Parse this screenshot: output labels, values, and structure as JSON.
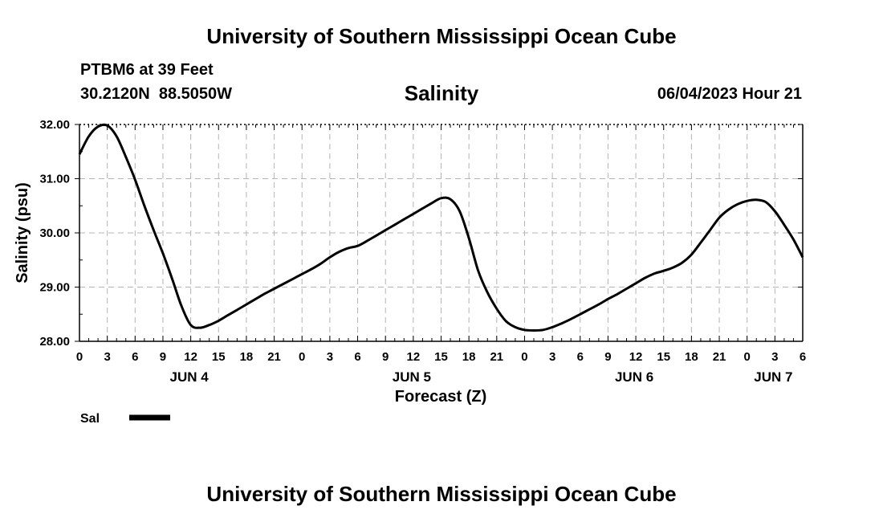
{
  "header": {
    "title": "University of Southern Mississippi Ocean Cube",
    "station": "PTBM6 at 39 Feet",
    "coords": "30.2120N  88.5050W",
    "timestamp": "06/04/2023 Hour 21"
  },
  "footer": {
    "title": "University of Southern Mississippi Ocean Cube"
  },
  "chart_data": {
    "type": "line",
    "title": "Salinity",
    "xlabel": "Forecast (Z)",
    "ylabel": "Salinity (psu)",
    "xlim": [
      0,
      78
    ],
    "ylim": [
      28.0,
      32.0
    ],
    "grid": true,
    "x_ticks": [
      0,
      3,
      6,
      9,
      12,
      15,
      18,
      21,
      24,
      27,
      30,
      33,
      36,
      39,
      42,
      45,
      48,
      51,
      54,
      57,
      60,
      63,
      66,
      69,
      72,
      75,
      78
    ],
    "x_tick_labels": [
      "0",
      "3",
      "6",
      "9",
      "12",
      "15",
      "18",
      "21",
      "0",
      "3",
      "6",
      "9",
      "12",
      "15",
      "18",
      "21",
      "0",
      "3",
      "6",
      "9",
      "12",
      "15",
      "18",
      "21",
      "0",
      "3",
      "6"
    ],
    "y_ticks": [
      28.0,
      29.0,
      30.0,
      31.0,
      32.0
    ],
    "y_tick_labels": [
      "28.00",
      "29.00",
      "30.00",
      "31.00",
      "32.00"
    ],
    "day_labels": [
      {
        "x": 12,
        "label": "JUN 4"
      },
      {
        "x": 36,
        "label": "JUN 5"
      },
      {
        "x": 60,
        "label": "JUN 6"
      },
      {
        "x": 75,
        "label": "JUN 7"
      }
    ],
    "legend": {
      "label": "Sal",
      "position": "bottom-left"
    },
    "series": [
      {
        "name": "Sal",
        "x": [
          0,
          1,
          2,
          3,
          4,
          5,
          6,
          7,
          8,
          9,
          10,
          11,
          12,
          13,
          14,
          15,
          16,
          17,
          18,
          19,
          20,
          21,
          22,
          23,
          24,
          25,
          26,
          27,
          28,
          29,
          30,
          31,
          32,
          33,
          34,
          35,
          36,
          37,
          38,
          39,
          40,
          41,
          42,
          43,
          44,
          45,
          46,
          47,
          48,
          49,
          50,
          51,
          52,
          53,
          54,
          55,
          56,
          57,
          58,
          59,
          60,
          61,
          62,
          63,
          64,
          65,
          66,
          67,
          68,
          69,
          70,
          71,
          72,
          73,
          74,
          75,
          76,
          77,
          78
        ],
        "values": [
          31.45,
          31.78,
          31.96,
          31.98,
          31.78,
          31.4,
          30.98,
          30.5,
          30.05,
          29.62,
          29.15,
          28.65,
          28.3,
          28.25,
          28.3,
          28.38,
          28.48,
          28.58,
          28.68,
          28.78,
          28.88,
          28.97,
          29.06,
          29.15,
          29.24,
          29.33,
          29.43,
          29.55,
          29.65,
          29.72,
          29.76,
          29.85,
          29.95,
          30.05,
          30.15,
          30.25,
          30.35,
          30.45,
          30.55,
          30.64,
          30.62,
          30.4,
          29.9,
          29.3,
          28.9,
          28.6,
          28.37,
          28.26,
          28.21,
          28.2,
          28.21,
          28.26,
          28.33,
          28.41,
          28.5,
          28.59,
          28.68,
          28.78,
          28.87,
          28.97,
          29.07,
          29.17,
          29.25,
          29.3,
          29.36,
          29.45,
          29.6,
          29.82,
          30.05,
          30.28,
          30.43,
          30.53,
          30.59,
          30.61,
          30.57,
          30.4,
          30.15,
          29.88,
          29.55
        ]
      }
    ]
  }
}
